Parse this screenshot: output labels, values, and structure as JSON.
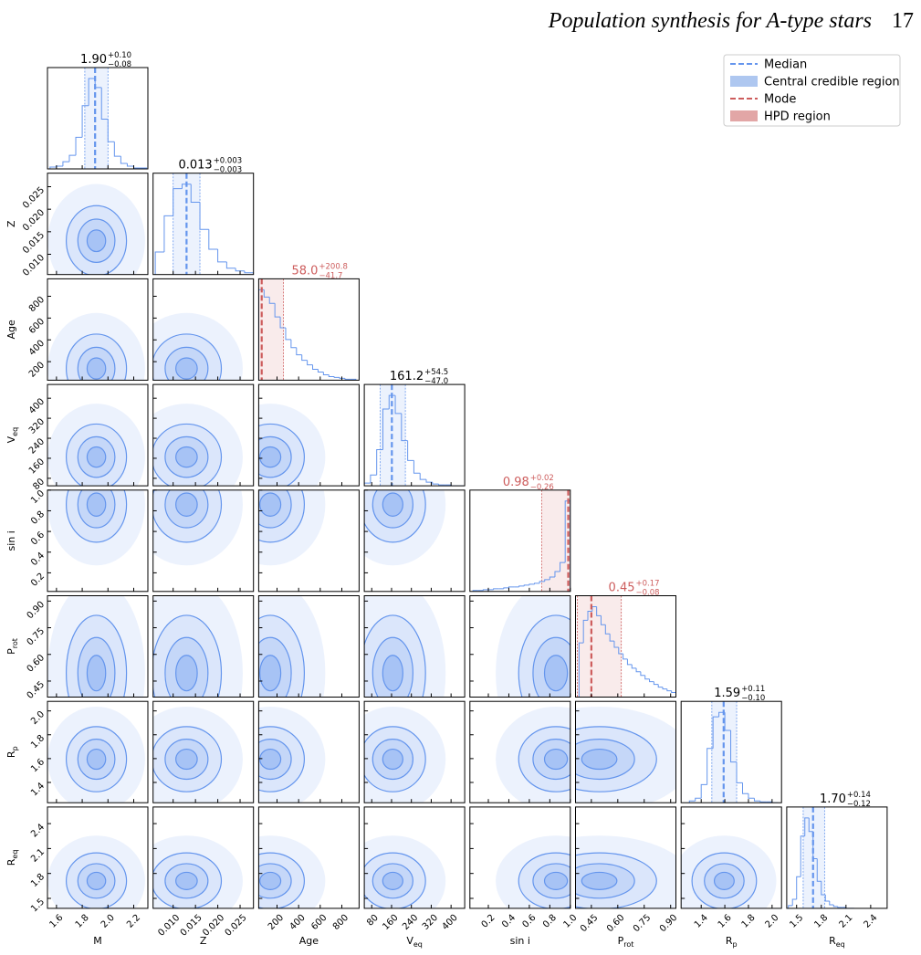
{
  "header": {
    "title": "Population synthesis for A-type stars",
    "page": "17"
  },
  "legend": [
    {
      "label": "Median",
      "marker": "dashed-line",
      "role": "median"
    },
    {
      "label": "Central credible region",
      "marker": "patch",
      "role": "median"
    },
    {
      "label": "Mode",
      "marker": "dashed-line",
      "role": "mode"
    },
    {
      "label": "HPD region",
      "marker": "patch",
      "role": "mode"
    }
  ],
  "chart_data": {
    "type": "corner",
    "colors": {
      "median": "#6495ed",
      "mode": "#cd5c5c",
      "median_title": "#000000",
      "mode_title": "#cd5c5c",
      "median_patch": "#aec7f0",
      "mode_patch": "#e2a6a6"
    },
    "params": [
      {
        "label": "M",
        "lim": [
          1.53,
          2.31
        ],
        "ticks": [
          1.6,
          1.8,
          {
            "value": 2,
            "label": "2.0"
          },
          2.2
        ],
        "summary": {
          "kind": "median",
          "center": 1.9,
          "center_label": "1.90",
          "plus": 0.1,
          "plus_label": "+0.10",
          "minus": 0.08,
          "minus_label": "−0.08"
        },
        "hist": {
          "bins": [
            1.55,
            1.6,
            1.65,
            1.7,
            1.75,
            1.8,
            1.85,
            1.9,
            1.95,
            2.0,
            2.05,
            2.1,
            2.15,
            2.2,
            2.25,
            2.3
          ],
          "counts": [
            2,
            3,
            8,
            15,
            35,
            70,
            100,
            90,
            55,
            30,
            14,
            6,
            3,
            1,
            1
          ]
        }
      },
      {
        "label": "Z",
        "lim": [
          0.0055,
          0.028
        ],
        "ticks": [
          {
            "value": 0.01,
            "label": "0.010"
          },
          0.015,
          {
            "value": 0.02,
            "label": "0.020"
          },
          0.025
        ],
        "summary": {
          "kind": "median",
          "center": 0.013,
          "center_label": "0.013",
          "plus": 0.003,
          "plus_label": "+0.003",
          "minus": 0.003,
          "minus_label": "−0.003"
        },
        "hist": {
          "bins": [
            0.006,
            0.008,
            0.01,
            0.012,
            0.014,
            0.016,
            0.018,
            0.02,
            0.022,
            0.024,
            0.026,
            0.028
          ],
          "counts": [
            25,
            65,
            95,
            100,
            80,
            50,
            28,
            14,
            7,
            4,
            2
          ]
        }
      },
      {
        "label": "Age",
        "lim": [
          30,
          960
        ],
        "ticks": [
          200,
          400,
          600,
          800
        ],
        "summary": {
          "kind": "mode",
          "center": 58,
          "center_label": "58.0",
          "plus": 200.8,
          "plus_label": "+200.8",
          "minus": 41.7,
          "minus_label": "−41.7"
        },
        "hist": {
          "bins": [
            30,
            80,
            130,
            180,
            230,
            280,
            330,
            380,
            430,
            480,
            530,
            580,
            630,
            680,
            730,
            780,
            830,
            880,
            930
          ],
          "counts": [
            100,
            92,
            85,
            70,
            58,
            45,
            36,
            28,
            22,
            17,
            12,
            9,
            6,
            4,
            3,
            2,
            1,
            1
          ]
        }
      },
      {
        "label": "V",
        "sub": "eq",
        "lim": [
          50,
          455
        ],
        "ticks": [
          80,
          160,
          240,
          320,
          400
        ],
        "summary": {
          "kind": "median",
          "center": 161.2,
          "center_label": "161.2",
          "plus": 54.5,
          "plus_label": "+54.5",
          "minus": 47,
          "minus_label": "−47.0"
        },
        "hist": {
          "bins": [
            50,
            75,
            100,
            125,
            150,
            175,
            200,
            225,
            250,
            275,
            300,
            325,
            350,
            375,
            400,
            425,
            450
          ],
          "counts": [
            3,
            12,
            40,
            85,
            100,
            80,
            50,
            28,
            14,
            7,
            4,
            2,
            1,
            1,
            0,
            0
          ]
        }
      },
      {
        "label": "sin i",
        "lim": [
          0.02,
          1.0
        ],
        "ticks": [
          0.2,
          0.4,
          0.6,
          0.8,
          {
            "value": 1,
            "label": "1.0"
          }
        ],
        "summary": {
          "kind": "mode",
          "center": 0.98,
          "center_label": "0.98",
          "plus": 0.02,
          "plus_label": "+0.02",
          "minus": 0.26,
          "minus_label": "−0.26"
        },
        "hist": {
          "bins": [
            0.05,
            0.1,
            0.15,
            0.2,
            0.25,
            0.3,
            0.35,
            0.4,
            0.45,
            0.5,
            0.55,
            0.6,
            0.65,
            0.7,
            0.75,
            0.8,
            0.85,
            0.9,
            0.95,
            1.0
          ],
          "counts": [
            1,
            1,
            2,
            2,
            3,
            3,
            4,
            5,
            5,
            6,
            7,
            8,
            9,
            11,
            13,
            16,
            22,
            32,
            100
          ]
        }
      },
      {
        "label": "P",
        "sub": "rot",
        "lim": [
          0.36,
          0.93
        ],
        "ticks": [
          0.45,
          {
            "value": 0.6,
            "label": "0.60"
          },
          0.75,
          {
            "value": 0.9,
            "label": "0.90"
          }
        ],
        "summary": {
          "kind": "mode",
          "center": 0.45,
          "center_label": "0.45",
          "plus": 0.17,
          "plus_label": "+0.17",
          "minus": 0.08,
          "minus_label": "−0.08"
        },
        "hist": {
          "bins": [
            0.38,
            0.405,
            0.43,
            0.455,
            0.48,
            0.505,
            0.53,
            0.555,
            0.58,
            0.605,
            0.63,
            0.655,
            0.68,
            0.705,
            0.73,
            0.755,
            0.78,
            0.805,
            0.83,
            0.855,
            0.88,
            0.905,
            0.93
          ],
          "counts": [
            60,
            85,
            95,
            100,
            90,
            80,
            70,
            62,
            55,
            48,
            42,
            36,
            32,
            28,
            24,
            20,
            17,
            14,
            11,
            9,
            7,
            5
          ]
        }
      },
      {
        "label": "R",
        "sub": "p",
        "lim": [
          1.23,
          2.08
        ],
        "ticks": [
          1.4,
          1.6,
          1.8,
          {
            "value": 2,
            "label": "2.0"
          }
        ],
        "summary": {
          "kind": "median",
          "center": 1.59,
          "center_label": "1.59",
          "plus": 0.11,
          "plus_label": "+0.11",
          "minus": 0.1,
          "minus_label": "−0.10"
        },
        "hist": {
          "bins": [
            1.3,
            1.35,
            1.4,
            1.45,
            1.5,
            1.55,
            1.6,
            1.65,
            1.7,
            1.75,
            1.8,
            1.85,
            1.9,
            1.95,
            2.0,
            2.05
          ],
          "counts": [
            2,
            5,
            20,
            60,
            95,
            100,
            80,
            45,
            22,
            10,
            5,
            2,
            1,
            1,
            0
          ]
        }
      },
      {
        "label": "R",
        "sub": "eq",
        "lim": [
          1.38,
          2.6
        ],
        "ticks": [
          1.5,
          1.8,
          2.1,
          2.4
        ],
        "summary": {
          "kind": "median",
          "center": 1.7,
          "center_label": "1.70",
          "plus": 0.14,
          "plus_label": "+0.14",
          "minus": 0.12,
          "minus_label": "−0.12"
        },
        "hist": {
          "bins": [
            1.4,
            1.45,
            1.5,
            1.55,
            1.6,
            1.65,
            1.7,
            1.75,
            1.8,
            1.85,
            1.9,
            1.95,
            2.0,
            2.05,
            2.1,
            2.15,
            2.2
          ],
          "counts": [
            3,
            10,
            35,
            80,
            100,
            85,
            55,
            30,
            15,
            8,
            4,
            2,
            1,
            1,
            0,
            0
          ]
        }
      }
    ]
  }
}
